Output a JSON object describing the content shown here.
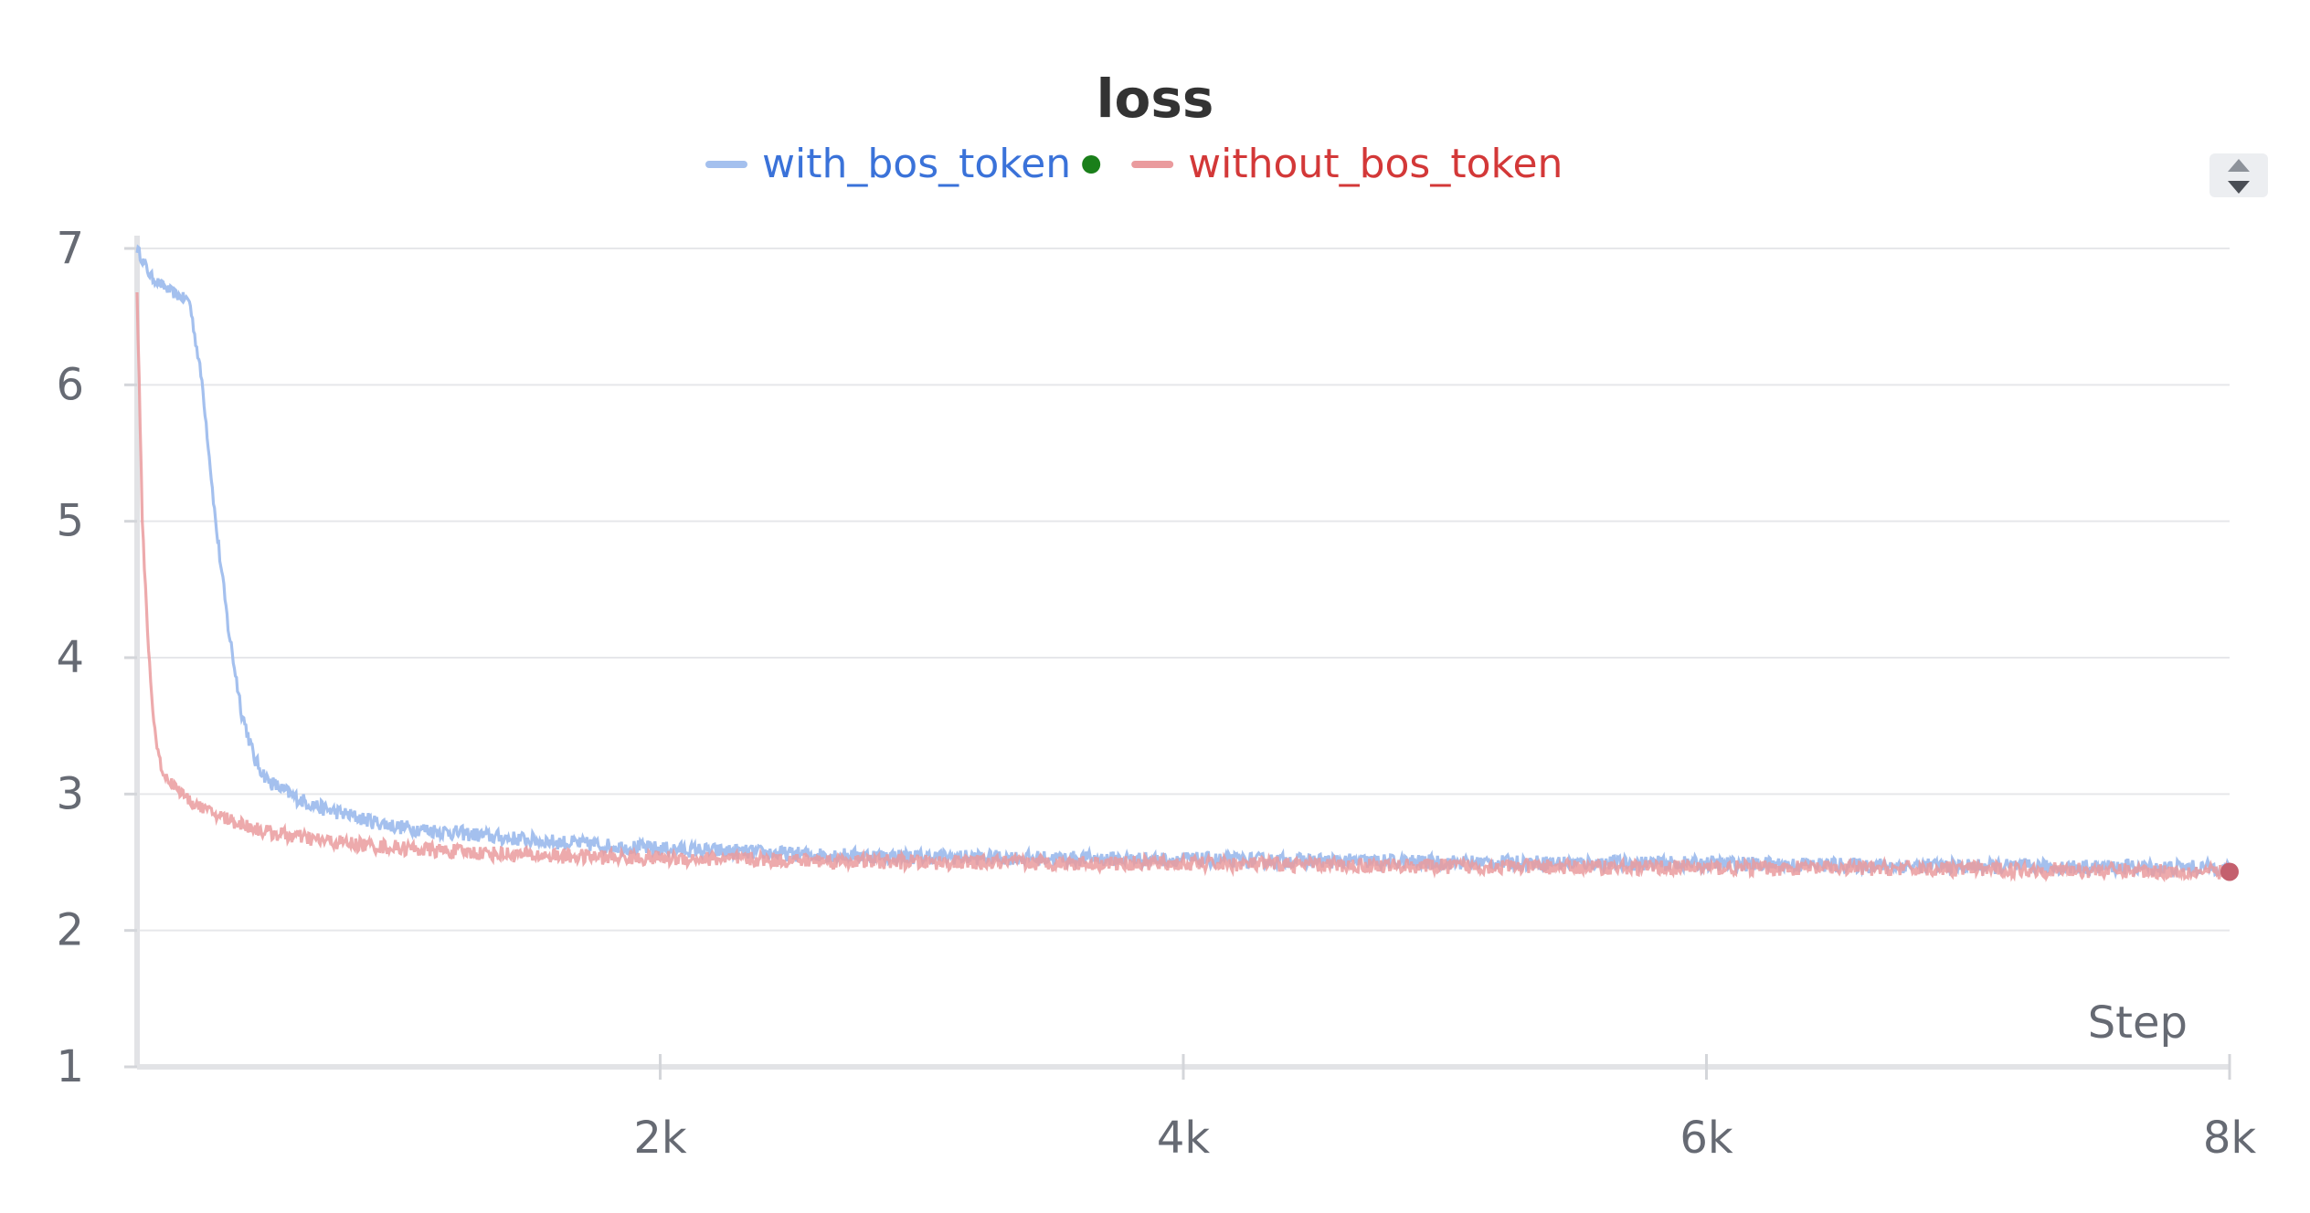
{
  "chart_data": {
    "type": "line",
    "title": "loss",
    "xlabel": "Step",
    "ylabel": "",
    "xlim": [
      0,
      8000
    ],
    "ylim": [
      1,
      7
    ],
    "x_ticks": [
      {
        "value": 2000,
        "label": "2k"
      },
      {
        "value": 4000,
        "label": "4k"
      },
      {
        "value": 6000,
        "label": "6k"
      },
      {
        "value": 8000,
        "label": "8k"
      }
    ],
    "y_ticks": [
      {
        "value": 1,
        "label": "1"
      },
      {
        "value": 2,
        "label": "2"
      },
      {
        "value": 3,
        "label": "3"
      },
      {
        "value": 4,
        "label": "4"
      },
      {
        "value": 5,
        "label": "5"
      },
      {
        "value": 6,
        "label": "6"
      },
      {
        "value": 7,
        "label": "7"
      }
    ],
    "grid": true,
    "legend_position": "top-center",
    "series": [
      {
        "name": "with_bos_token",
        "color": "#a4c0ee",
        "label_color": "#3a72d9",
        "points": [
          [
            0,
            7.0
          ],
          [
            50,
            6.8
          ],
          [
            100,
            6.72
          ],
          [
            150,
            6.66
          ],
          [
            200,
            6.62
          ],
          [
            250,
            6.0
          ],
          [
            300,
            5.0
          ],
          [
            350,
            4.2
          ],
          [
            400,
            3.6
          ],
          [
            450,
            3.25
          ],
          [
            500,
            3.1
          ],
          [
            600,
            2.98
          ],
          [
            700,
            2.9
          ],
          [
            800,
            2.85
          ],
          [
            900,
            2.8
          ],
          [
            1000,
            2.76
          ],
          [
            1200,
            2.72
          ],
          [
            1400,
            2.68
          ],
          [
            1600,
            2.65
          ],
          [
            1800,
            2.62
          ],
          [
            2000,
            2.6
          ],
          [
            2500,
            2.56
          ],
          [
            3000,
            2.54
          ],
          [
            3500,
            2.53
          ],
          [
            4000,
            2.52
          ],
          [
            5000,
            2.5
          ],
          [
            6000,
            2.49
          ],
          [
            7000,
            2.47
          ],
          [
            8000,
            2.46
          ]
        ]
      },
      {
        "name": "without_bos_token",
        "color": "#ea9b9e",
        "label_color": "#d33838",
        "points": [
          [
            0,
            6.7
          ],
          [
            20,
            5.0
          ],
          [
            40,
            4.2
          ],
          [
            60,
            3.6
          ],
          [
            80,
            3.3
          ],
          [
            100,
            3.15
          ],
          [
            150,
            3.05
          ],
          [
            200,
            2.95
          ],
          [
            300,
            2.85
          ],
          [
            400,
            2.78
          ],
          [
            500,
            2.72
          ],
          [
            700,
            2.66
          ],
          [
            900,
            2.62
          ],
          [
            1200,
            2.58
          ],
          [
            1500,
            2.55
          ],
          [
            2000,
            2.53
          ],
          [
            3000,
            2.5
          ],
          [
            4000,
            2.49
          ],
          [
            5000,
            2.47
          ],
          [
            6000,
            2.46
          ],
          [
            7000,
            2.45
          ],
          [
            8000,
            2.43
          ]
        ]
      }
    ],
    "legend_marker_color": "#1a7f1a",
    "end_marker_color": "#c4606e"
  }
}
